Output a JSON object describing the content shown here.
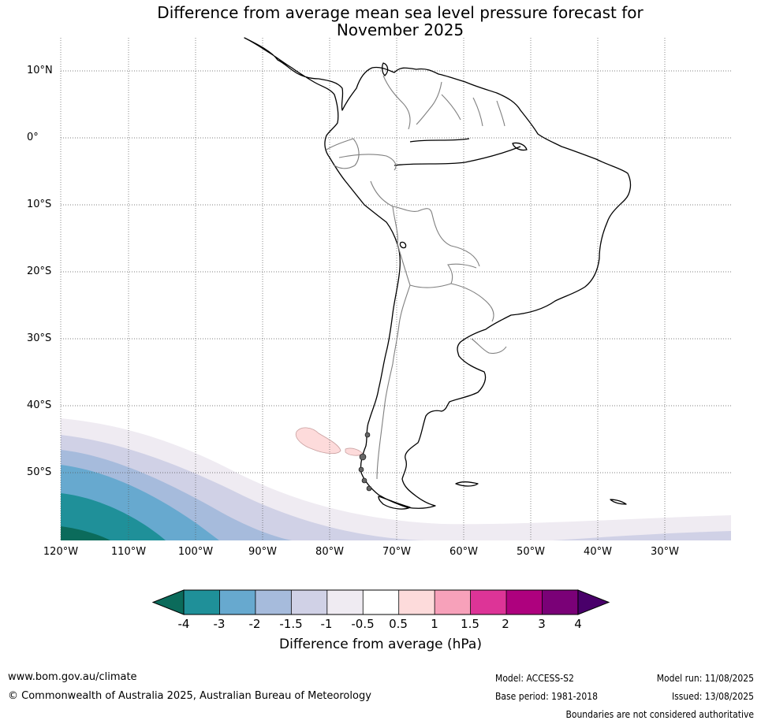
{
  "title_line1": "Difference from average mean sea level pressure forecast for",
  "title_line2": "November 2025",
  "latitude_labels": [
    "10°N",
    "0°",
    "10°S",
    "20°S",
    "30°S",
    "40°S",
    "50°S"
  ],
  "longitude_labels": [
    "120°W",
    "110°W",
    "100°W",
    "90°W",
    "80°W",
    "70°W",
    "60°W",
    "50°W",
    "40°W",
    "30°W"
  ],
  "colorbar": {
    "ticks": [
      "-4",
      "-3",
      "-2",
      "-1.5",
      "-1",
      "-0.5",
      "0.5",
      "1",
      "1.5",
      "2",
      "3",
      "4"
    ],
    "colors": [
      "#0b6b5b",
      "#1f9099",
      "#67a9cf",
      "#a6bbdc",
      "#d0d1e6",
      "#efebf2",
      "#ffffff",
      "#fddbdb",
      "#f7a1ba",
      "#dd3497",
      "#ae017e",
      "#7a0177",
      "#49006a"
    ],
    "label": "Difference from average (hPa)"
  },
  "footer": {
    "website": "www.bom.gov.au/climate",
    "copyright": "© Commonwealth of Australia 2025, Australian Bureau of Meteorology",
    "model": "Model: ACCESS-S2",
    "base_period": "Base period: 1981-2018",
    "model_run": "Model run: 11/08/2025",
    "issued": "Issued: 13/08/2025",
    "disclaimer": "Boundaries are not considered authoritative"
  }
}
